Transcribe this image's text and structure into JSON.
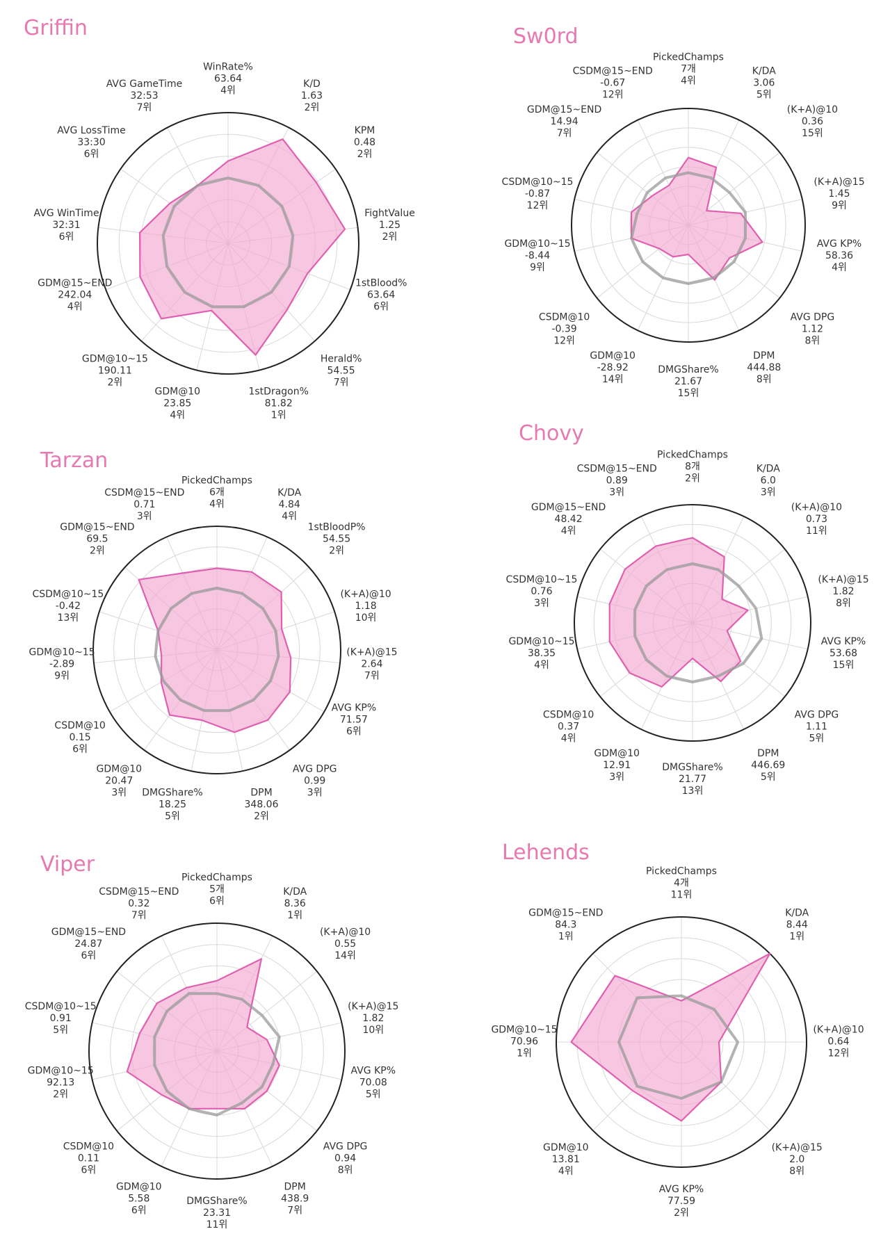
{
  "colors": {
    "player": "#e060b0",
    "player_fill": "#f2a9d2",
    "average": "#999999",
    "title": "#e879b0"
  },
  "chart_data": [
    {
      "type": "radar",
      "title": "Griffin",
      "grid": true,
      "axes": [
        {
          "name": "WinRate%",
          "value": "63.64",
          "rank": "4위"
        },
        {
          "name": "K/D",
          "value": "1.63",
          "rank": "2위"
        },
        {
          "name": "KPM",
          "value": "0.48",
          "rank": "2위"
        },
        {
          "name": "FightValue",
          "value": "1.25",
          "rank": "2위"
        },
        {
          "name": "1stBlood%",
          "value": "63.64",
          "rank": "6위"
        },
        {
          "name": "Herald%",
          "value": "54.55",
          "rank": "7위"
        },
        {
          "name": "1stDragon%",
          "value": "81.82",
          "rank": "1위"
        },
        {
          "name": "GDM@10",
          "value": "23.85",
          "rank": "4위"
        },
        {
          "name": "GDM@10~15",
          "value": "190.11",
          "rank": "2위"
        },
        {
          "name": "GDM@15~END",
          "value": "242.04",
          "rank": "4위"
        },
        {
          "name": "AVG WinTime",
          "value": "32:31",
          "rank": "6위"
        },
        {
          "name": "AVG LossTime",
          "value": "33:30",
          "rank": "6위"
        },
        {
          "name": "AVG GameTime",
          "value": "32:53",
          "rank": "7위"
        }
      ],
      "series": [
        {
          "values": [
            0.63,
            0.9,
            0.82,
            0.9,
            0.65,
            0.68,
            0.88,
            0.53,
            0.77,
            0.72,
            0.68,
            0.54,
            0.5
          ]
        },
        {
          "values": [
            0.5,
            0.5,
            0.5,
            0.5,
            0.5,
            0.5,
            0.5,
            0.5,
            0.5,
            0.5,
            0.5,
            0.5,
            0.5
          ]
        }
      ]
    },
    {
      "type": "radar",
      "title": "Sw0rd",
      "grid": true,
      "axes": [
        {
          "name": "PickedChamps",
          "value": "7개",
          "rank": "4위"
        },
        {
          "name": "K/DA",
          "value": "3.06",
          "rank": "5위"
        },
        {
          "name": "(K+A)@10",
          "value": "0.36",
          "rank": "15위"
        },
        {
          "name": "(K+A)@15",
          "value": "1.45",
          "rank": "9위"
        },
        {
          "name": "AVG KP%",
          "value": "58.36",
          "rank": "4위"
        },
        {
          "name": "AVG DPG",
          "value": "1.12",
          "rank": "8위"
        },
        {
          "name": "DPM",
          "value": "444.88",
          "rank": "8위"
        },
        {
          "name": "DMGShare%",
          "value": "21.67",
          "rank": "15위"
        },
        {
          "name": "GDM@10",
          "value": "-28.92",
          "rank": "14위"
        },
        {
          "name": "CSDM@10",
          "value": "-0.39",
          "rank": "12위"
        },
        {
          "name": "GDM@10~15",
          "value": "-8.44",
          "rank": "9위"
        },
        {
          "name": "CSDM@10~15",
          "value": "-0.87",
          "rank": "12위"
        },
        {
          "name": "GDM@15~END",
          "value": "14.94",
          "rank": "7위"
        },
        {
          "name": "CSDM@15~END",
          "value": "-0.67",
          "rank": "12위"
        }
      ],
      "series": [
        {
          "values": [
            0.58,
            0.55,
            0.2,
            0.46,
            0.65,
            0.45,
            0.52,
            0.25,
            0.3,
            0.32,
            0.5,
            0.5,
            0.4,
            0.38
          ]
        },
        {
          "values": [
            0.45,
            0.45,
            0.45,
            0.5,
            0.5,
            0.5,
            0.5,
            0.5,
            0.5,
            0.5,
            0.5,
            0.45,
            0.45,
            0.45
          ]
        }
      ]
    },
    {
      "type": "radar",
      "title": "Tarzan",
      "grid": true,
      "axes": [
        {
          "name": "PickedChamps",
          "value": "6개",
          "rank": "4위"
        },
        {
          "name": "K/DA",
          "value": "4.84",
          "rank": "4위"
        },
        {
          "name": "1stBloodP%",
          "value": "54.55",
          "rank": "2위"
        },
        {
          "name": "(K+A)@10",
          "value": "1.18",
          "rank": "10위"
        },
        {
          "name": "(K+A)@15",
          "value": "2.64",
          "rank": "7위"
        },
        {
          "name": "AVG KP%",
          "value": "71.57",
          "rank": "6위"
        },
        {
          "name": "AVG DPG",
          "value": "0.99",
          "rank": "3위"
        },
        {
          "name": "DPM",
          "value": "348.06",
          "rank": "2위"
        },
        {
          "name": "DMGShare%",
          "value": "18.25",
          "rank": "5위"
        },
        {
          "name": "GDM@10",
          "value": "20.47",
          "rank": "3위"
        },
        {
          "name": "CSDM@10",
          "value": "0.15",
          "rank": "6위"
        },
        {
          "name": "GDM@10~15",
          "value": "-2.89",
          "rank": "9위"
        },
        {
          "name": "CSDM@10~15",
          "value": "-0.42",
          "rank": "13위"
        },
        {
          "name": "GDM@15~END",
          "value": "69.5",
          "rank": "2위"
        },
        {
          "name": "CSDM@15~END",
          "value": "0.71",
          "rank": "3위"
        }
      ],
      "series": [
        {
          "values": [
            0.66,
            0.69,
            0.7,
            0.55,
            0.6,
            0.68,
            0.7,
            0.68,
            0.58,
            0.65,
            0.52,
            0.45,
            0.5,
            0.85,
            0.68
          ]
        },
        {
          "values": [
            0.5,
            0.5,
            0.5,
            0.5,
            0.5,
            0.5,
            0.5,
            0.5,
            0.5,
            0.5,
            0.5,
            0.5,
            0.5,
            0.5,
            0.5
          ]
        }
      ]
    },
    {
      "type": "radar",
      "title": "Chovy",
      "grid": true,
      "axes": [
        {
          "name": "PickedChamps",
          "value": "8개",
          "rank": "2위"
        },
        {
          "name": "K/DA",
          "value": "6.0",
          "rank": "3위"
        },
        {
          "name": "(K+A)@10",
          "value": "0.73",
          "rank": "11위"
        },
        {
          "name": "(K+A)@15",
          "value": "1.82",
          "rank": "8위"
        },
        {
          "name": "AVG KP%",
          "value": "53.68",
          "rank": "15위"
        },
        {
          "name": "AVG DPG",
          "value": "1.11",
          "rank": "5위"
        },
        {
          "name": "DPM",
          "value": "446.69",
          "rank": "5위"
        },
        {
          "name": "DMGShare%",
          "value": "21.77",
          "rank": "13위"
        },
        {
          "name": "GDM@10",
          "value": "12.91",
          "rank": "3위"
        },
        {
          "name": "CSDM@10",
          "value": "0.37",
          "rank": "4위"
        },
        {
          "name": "GDM@10~15",
          "value": "38.35",
          "rank": "4위"
        },
        {
          "name": "CSDM@10~15",
          "value": "0.76",
          "rank": "3위"
        },
        {
          "name": "GDM@15~END",
          "value": "48.42",
          "rank": "4위"
        },
        {
          "name": "CSDM@15~END",
          "value": "0.89",
          "rank": "3위"
        }
      ],
      "series": [
        {
          "values": [
            0.72,
            0.62,
            0.32,
            0.48,
            0.3,
            0.52,
            0.55,
            0.3,
            0.6,
            0.68,
            0.72,
            0.72,
            0.73,
            0.72
          ]
        },
        {
          "values": [
            0.5,
            0.5,
            0.5,
            0.55,
            0.6,
            0.55,
            0.5,
            0.5,
            0.5,
            0.5,
            0.5,
            0.5,
            0.5,
            0.5
          ]
        }
      ]
    },
    {
      "type": "radar",
      "title": "Viper",
      "grid": true,
      "axes": [
        {
          "name": "PickedChamps",
          "value": "5개",
          "rank": "6위"
        },
        {
          "name": "K/DA",
          "value": "8.36",
          "rank": "1위"
        },
        {
          "name": "(K+A)@10",
          "value": "0.55",
          "rank": "14위"
        },
        {
          "name": "(K+A)@15",
          "value": "1.82",
          "rank": "10위"
        },
        {
          "name": "AVG KP%",
          "value": "70.08",
          "rank": "5위"
        },
        {
          "name": "AVG DPG",
          "value": "0.94",
          "rank": "8위"
        },
        {
          "name": "DPM",
          "value": "438.9",
          "rank": "7위"
        },
        {
          "name": "DMGShare%",
          "value": "23.31",
          "rank": "11위"
        },
        {
          "name": "GDM@10",
          "value": "5.58",
          "rank": "6위"
        },
        {
          "name": "CSDM@10",
          "value": "0.11",
          "rank": "6위"
        },
        {
          "name": "GDM@10~15",
          "value": "92.13",
          "rank": "2위"
        },
        {
          "name": "CSDM@10~15",
          "value": "0.91",
          "rank": "5위"
        },
        {
          "name": "GDM@15~END",
          "value": "24.87",
          "rank": "6위"
        },
        {
          "name": "CSDM@15~END",
          "value": "0.32",
          "rank": "7위"
        }
      ],
      "series": [
        {
          "values": [
            0.55,
            0.8,
            0.3,
            0.4,
            0.5,
            0.5,
            0.5,
            0.45,
            0.5,
            0.55,
            0.72,
            0.62,
            0.6,
            0.55
          ]
        },
        {
          "values": [
            0.45,
            0.45,
            0.45,
            0.5,
            0.45,
            0.45,
            0.45,
            0.5,
            0.5,
            0.5,
            0.5,
            0.5,
            0.5,
            0.5
          ]
        }
      ]
    },
    {
      "type": "radar",
      "title": "Lehends",
      "grid": true,
      "axes": [
        {
          "name": "PickedChamps",
          "value": "4개",
          "rank": "11위"
        },
        {
          "name": "K/DA",
          "value": "8.44",
          "rank": "1위"
        },
        {
          "name": "(K+A)@10",
          "value": "0.64",
          "rank": "12위"
        },
        {
          "name": "(K+A)@15",
          "value": "2.0",
          "rank": "8위"
        },
        {
          "name": "AVG KP%",
          "value": "77.59",
          "rank": "2위"
        },
        {
          "name": "GDM@10",
          "value": "13.81",
          "rank": "4위"
        },
        {
          "name": "GDM@10~15",
          "value": "70.96",
          "rank": "1위"
        },
        {
          "name": "GDM@15~END",
          "value": "84.3",
          "rank": "1위"
        }
      ],
      "series": [
        {
          "values": [
            0.33,
            1.0,
            0.3,
            0.45,
            0.63,
            0.55,
            0.88,
            0.75
          ]
        },
        {
          "values": [
            0.37,
            0.37,
            0.45,
            0.45,
            0.45,
            0.5,
            0.5,
            0.5
          ]
        }
      ]
    }
  ]
}
